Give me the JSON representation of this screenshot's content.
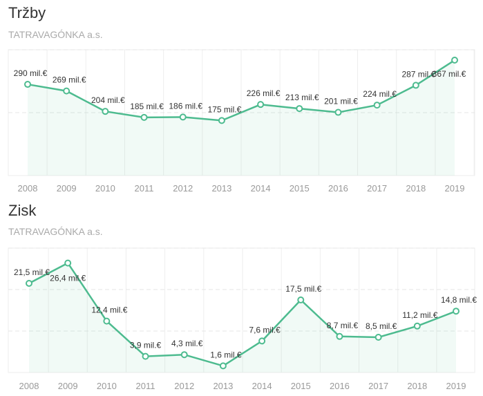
{
  "charts": [
    {
      "title": "Tržby",
      "subtitle": "TATRAVAGÓNKA a.s."
    },
    {
      "title": "Zisk",
      "subtitle": "TATRAVAGÓNKA a.s."
    }
  ],
  "chart_data": [
    {
      "type": "area",
      "title": "Tržby",
      "subtitle": "TATRAVAGÓNKA a.s.",
      "categories": [
        "2008",
        "2009",
        "2010",
        "2011",
        "2012",
        "2013",
        "2014",
        "2015",
        "2016",
        "2017",
        "2018",
        "2019"
      ],
      "values": [
        290,
        269,
        204,
        185,
        186,
        175,
        226,
        213,
        201,
        224,
        287,
        367
      ],
      "labels": [
        "290 mil.€",
        "269 mil.€",
        "204 mil.€",
        "185 mil.€",
        "186 mil.€",
        "175 mil.€",
        "226 mil.€",
        "213 mil.€",
        "201 mil.€",
        "224 mil.€",
        "287 mil.€",
        "367 mil.€"
      ],
      "unit": "mil.€",
      "ylim": [
        0,
        400
      ],
      "grid": true,
      "color": "#4dbb8f"
    },
    {
      "type": "area",
      "title": "Zisk",
      "subtitle": "TATRAVAGÓNKA a.s.",
      "categories": [
        "2008",
        "2009",
        "2010",
        "2011",
        "2012",
        "2013",
        "2014",
        "2015",
        "2016",
        "2017",
        "2018",
        "2019"
      ],
      "values": [
        21.5,
        26.4,
        12.4,
        3.9,
        4.3,
        1.6,
        7.6,
        17.5,
        8.7,
        8.5,
        11.2,
        14.8
      ],
      "labels": [
        "21,5 mil.€",
        "26,4 mil.€",
        "12,4 mil.€",
        "3,9 mil.€",
        "4,3 mil.€",
        "1,6 mil.€",
        "7,6 mil.€",
        "17,5 mil.€",
        "8,7 mil.€",
        "8,5 mil.€",
        "11,2 mil.€",
        "14,8 mil.€"
      ],
      "unit": "mil.€",
      "ylim": [
        0,
        30
      ],
      "grid": true,
      "color": "#4dbb8f"
    }
  ]
}
